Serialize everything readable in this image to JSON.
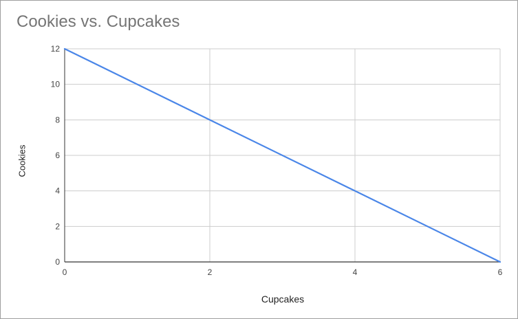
{
  "chart_data": {
    "type": "line",
    "title": "Cookies vs. Cupcakes",
    "xlabel": "Cupcakes",
    "ylabel": "Cookies",
    "xlim": [
      0,
      6
    ],
    "ylim": [
      0,
      12
    ],
    "x_ticks": [
      "0",
      "2",
      "4",
      "6"
    ],
    "y_ticks": [
      "0",
      "2",
      "4",
      "6",
      "8",
      "10",
      "12"
    ],
    "grid": true,
    "series": [
      {
        "x": [
          0,
          2,
          4,
          6
        ],
        "y": [
          12,
          8,
          4,
          0
        ],
        "color": "#4a86e8"
      }
    ]
  }
}
